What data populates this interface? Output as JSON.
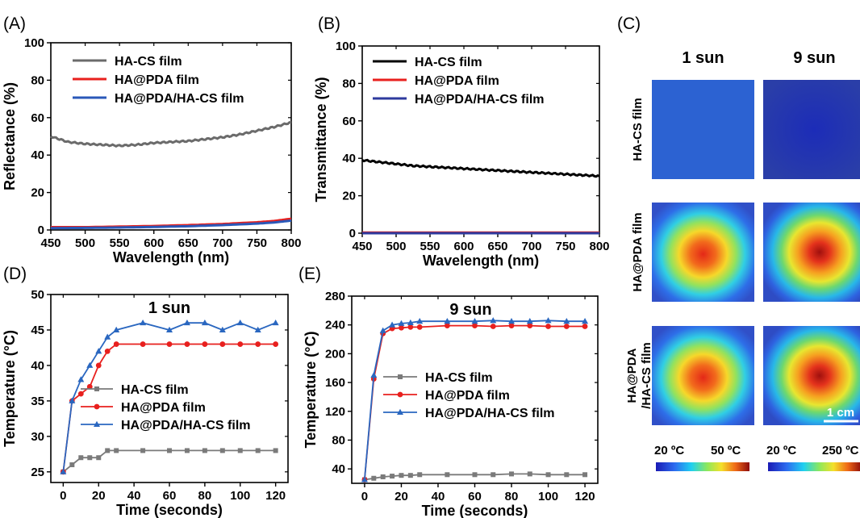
{
  "figure": {
    "panels": [
      {
        "letter": "(A)",
        "type": "line",
        "xlabel": "Wavelength (nm)",
        "ylabel": "Reflectance (%)",
        "xlim": [
          450,
          800
        ],
        "ylim": [
          0,
          100
        ],
        "xticks": [
          450,
          500,
          550,
          600,
          650,
          700,
          750,
          800
        ],
        "yticks": [
          0,
          20,
          40,
          60,
          80,
          100
        ],
        "legend": "top-left",
        "series": [
          {
            "name": "HA-CS film",
            "color": "#6b6b6b",
            "x": [
              450,
              475,
              500,
              525,
              550,
              575,
              600,
              625,
              650,
              675,
              700,
              725,
              750,
              775,
              800
            ],
            "y": [
              50,
              47,
              46,
              45.5,
              45,
              45.5,
              46.5,
              47,
              47.5,
              48.5,
              49.5,
              51,
              53,
              55,
              57.5
            ]
          },
          {
            "name": "HA@PDA film",
            "color": "#e8201e",
            "x": [
              450,
              500,
              550,
              600,
              650,
              700,
              750,
              775,
              800
            ],
            "y": [
              1.5,
              1.5,
              1.8,
              2.1,
              2.6,
              3.2,
              4.1,
              4.8,
              6
            ]
          },
          {
            "name": "HA@PDA/HA-CS film",
            "color": "#2a58b8",
            "x": [
              450,
              500,
              550,
              600,
              650,
              700,
              750,
              775,
              800
            ],
            "y": [
              1,
              1.1,
              1.3,
              1.6,
              2,
              2.6,
              3.4,
              4,
              5
            ]
          }
        ]
      },
      {
        "letter": "(B)",
        "type": "line",
        "xlabel": "Wavelength (nm)",
        "ylabel": "Transmittance (%)",
        "xlim": [
          450,
          800
        ],
        "ylim": [
          0,
          100
        ],
        "xticks": [
          450,
          500,
          550,
          600,
          650,
          700,
          750,
          800
        ],
        "yticks": [
          0,
          20,
          40,
          60,
          80,
          100
        ],
        "legend": "top-left",
        "series": [
          {
            "name": "HA-CS film",
            "color": "#000000",
            "x": [
              450,
              475,
              500,
              525,
              550,
              575,
              600,
              625,
              650,
              675,
              700,
              725,
              750,
              775,
              800
            ],
            "y": [
              39,
              38,
              37,
              36,
              35.5,
              35,
              34.5,
              34,
              33.5,
              33,
              32.5,
              32,
              31.5,
              31,
              30.5
            ]
          },
          {
            "name": "HA@PDA film",
            "color": "#e8201e",
            "x": [
              450,
              800
            ],
            "y": [
              0.3,
              0.3
            ]
          },
          {
            "name": "HA@PDA/HA-CS film",
            "color": "#2e3a9e",
            "x": [
              450,
              800
            ],
            "y": [
              0,
              0
            ]
          }
        ]
      },
      {
        "letter": "(D)",
        "type": "line",
        "title": "1 sun",
        "xlabel": "Time (seconds)",
        "ylabel": "Temperature (°C)",
        "xlim": [
          -7,
          127
        ],
        "ylim": [
          23.5,
          50
        ],
        "xticks": [
          0,
          20,
          40,
          60,
          80,
          100,
          120
        ],
        "yticks": [
          25,
          30,
          35,
          40,
          45,
          50
        ],
        "legend": "bottom-left",
        "series": [
          {
            "name": "HA-CS film",
            "color": "#7a7a7a",
            "marker": "square",
            "x": [
              0,
              5,
              10,
              15,
              20,
              25,
              30,
              45,
              60,
              70,
              80,
              90,
              100,
              110,
              120
            ],
            "y": [
              25,
              26,
              27,
              27,
              27,
              28,
              28,
              28,
              28,
              28,
              28,
              28,
              28,
              28,
              28
            ]
          },
          {
            "name": "HA@PDA film",
            "color": "#e8201e",
            "marker": "circle",
            "x": [
              0,
              5,
              10,
              15,
              20,
              25,
              30,
              45,
              60,
              70,
              80,
              90,
              100,
              110,
              120
            ],
            "y": [
              25,
              35,
              36,
              37,
              40,
              42,
              43,
              43,
              43,
              43,
              43,
              43,
              43,
              43,
              43
            ]
          },
          {
            "name": "HA@PDA/HA-CS film",
            "color": "#2a67c0",
            "marker": "triangle",
            "x": [
              0,
              5,
              10,
              15,
              20,
              25,
              30,
              45,
              60,
              70,
              80,
              90,
              100,
              110,
              120
            ],
            "y": [
              25,
              35,
              38,
              40,
              42,
              44,
              45,
              46,
              45,
              46,
              46,
              45,
              46,
              45,
              46
            ]
          }
        ]
      },
      {
        "letter": "(E)",
        "type": "line",
        "title": "9 sun",
        "xlabel": "Time (seconds)",
        "ylabel": "Temperature (°C)",
        "xlim": [
          -7,
          127
        ],
        "ylim": [
          20,
          280
        ],
        "xticks": [
          0,
          20,
          40,
          60,
          80,
          100,
          120
        ],
        "yticks": [
          40,
          80,
          120,
          160,
          200,
          240,
          280
        ],
        "legend": "center-left",
        "series": [
          {
            "name": "HA-CS film",
            "color": "#7a7a7a",
            "marker": "square",
            "x": [
              0,
              5,
              10,
              15,
              20,
              25,
              30,
              45,
              60,
              70,
              80,
              90,
              100,
              110,
              120
            ],
            "y": [
              25,
              27,
              29,
              30,
              31,
              31,
              32,
              32,
              32,
              32,
              33,
              33,
              32,
              32,
              32
            ]
          },
          {
            "name": "HA@PDA film",
            "color": "#e8201e",
            "marker": "circle",
            "x": [
              0,
              5,
              10,
              15,
              20,
              25,
              30,
              45,
              60,
              70,
              80,
              90,
              100,
              110,
              120
            ],
            "y": [
              25,
              165,
              228,
              235,
              236,
              237,
              237,
              239,
              239,
              238,
              239,
              239,
              238,
              238,
              238
            ]
          },
          {
            "name": "HA@PDA/HA-CS film",
            "color": "#2a67c0",
            "marker": "triangle",
            "x": [
              0,
              5,
              10,
              15,
              20,
              25,
              30,
              45,
              60,
              70,
              80,
              90,
              100,
              110,
              120
            ],
            "y": [
              25,
              170,
              232,
              240,
              242,
              243,
              245,
              245,
              245,
              246,
              245,
              245,
              246,
              245,
              245
            ]
          }
        ]
      }
    ],
    "thermal": {
      "letter": "(C)",
      "columns": [
        "1 sun",
        "9 sun"
      ],
      "rows": [
        "HA-CS film",
        "HA@PDA film",
        "HA@PDA\n/HA-CS film"
      ],
      "scalebar": "1 cm",
      "colorbars": [
        {
          "min": "20 ºC",
          "max": "50 ºC"
        },
        {
          "min": "20 ºC",
          "max": "250 ºC"
        }
      ]
    }
  }
}
